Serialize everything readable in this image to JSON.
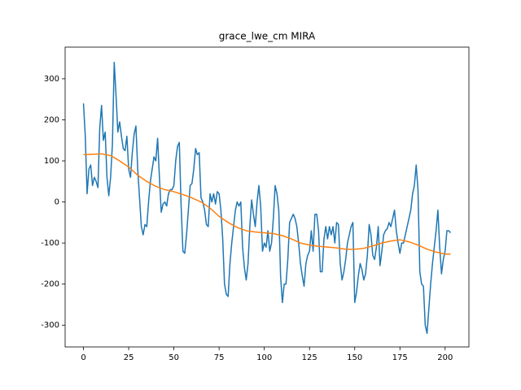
{
  "chart_data": {
    "type": "line",
    "title": "grace_lwe_cm MIRA",
    "xlim": [
      -10.15,
      213.15
    ],
    "xticks": [
      0,
      25,
      50,
      75,
      100,
      125,
      150,
      175,
      200
    ],
    "ylim": [
      -353,
      377
    ],
    "yticks": [
      -300,
      -200,
      -100,
      0,
      100,
      200,
      300
    ],
    "series": [
      {
        "color": "#1f77b4",
        "x": [
          0,
          1,
          2,
          3,
          4,
          5,
          6,
          7,
          8,
          9,
          10,
          11,
          12,
          13,
          14,
          15,
          16,
          17,
          18,
          19,
          20,
          21,
          22,
          23,
          24,
          25,
          26,
          27,
          28,
          29,
          30,
          31,
          32,
          33,
          34,
          35,
          36,
          37,
          38,
          39,
          40,
          41,
          42,
          43,
          44,
          45,
          46,
          47,
          48,
          49,
          50,
          51,
          52,
          53,
          54,
          55,
          56,
          57,
          58,
          59,
          60,
          61,
          62,
          63,
          64,
          65,
          66,
          67,
          68,
          69,
          70,
          71,
          72,
          73,
          74,
          75,
          76,
          77,
          78,
          79,
          80,
          81,
          82,
          83,
          84,
          85,
          86,
          87,
          88,
          89,
          90,
          91,
          92,
          93,
          94,
          95,
          96,
          97,
          98,
          99,
          100,
          101,
          102,
          103,
          104,
          105,
          106,
          107,
          108,
          109,
          110,
          111,
          112,
          113,
          114,
          115,
          116,
          117,
          118,
          119,
          120,
          121,
          122,
          123,
          124,
          125,
          126,
          127,
          128,
          129,
          130,
          131,
          132,
          133,
          134,
          135,
          136,
          137,
          138,
          139,
          140,
          141,
          142,
          143,
          144,
          145,
          146,
          147,
          148,
          149,
          150,
          151,
          152,
          153,
          154,
          155,
          156,
          157,
          158,
          159,
          160,
          161,
          162,
          163,
          164,
          165,
          166,
          167,
          168,
          169,
          170,
          171,
          172,
          173,
          174,
          175,
          176,
          177,
          178,
          179,
          180,
          181,
          182,
          183,
          184,
          185,
          186,
          187,
          188,
          189,
          190,
          191,
          192,
          193,
          194,
          195,
          196,
          197,
          198,
          199,
          200,
          201,
          202,
          203
        ],
        "values": [
          240,
          160,
          20,
          80,
          90,
          40,
          60,
          50,
          35,
          180,
          235,
          150,
          170,
          60,
          15,
          60,
          140,
          340,
          260,
          170,
          195,
          160,
          130,
          125,
          160,
          80,
          60,
          120,
          165,
          185,
          80,
          10,
          -60,
          -80,
          -55,
          -60,
          0,
          50,
          80,
          110,
          100,
          155,
          60,
          -25,
          -5,
          0,
          -10,
          20,
          30,
          30,
          40,
          100,
          135,
          145,
          -10,
          -120,
          -125,
          -80,
          -20,
          40,
          45,
          80,
          130,
          115,
          120,
          10,
          0,
          -20,
          -55,
          -60,
          20,
          0,
          20,
          -5,
          25,
          20,
          -20,
          -90,
          -200,
          -225,
          -230,
          -150,
          -100,
          -60,
          -20,
          0,
          -10,
          0,
          -110,
          -160,
          -190,
          -150,
          -60,
          5,
          -30,
          -60,
          0,
          40,
          -10,
          -120,
          -100,
          -110,
          -70,
          -120,
          -100,
          -40,
          40,
          20,
          -20,
          -180,
          -245,
          -200,
          -200,
          -140,
          -50,
          -40,
          -30,
          -40,
          -60,
          -100,
          -150,
          -180,
          -205,
          -150,
          -130,
          -120,
          -70,
          -120,
          -30,
          -30,
          -70,
          -170,
          -170,
          -90,
          -60,
          -90,
          -60,
          -80,
          -60,
          -100,
          -50,
          -55,
          -150,
          -190,
          -170,
          -140,
          -100,
          -80,
          -60,
          -50,
          -245,
          -220,
          -180,
          -150,
          -165,
          -190,
          -175,
          -130,
          -55,
          -80,
          -130,
          -140,
          -110,
          -60,
          -155,
          -120,
          -80,
          -70,
          -65,
          -50,
          -60,
          -40,
          -20,
          -70,
          -100,
          -125,
          -100,
          -100,
          -80,
          -60,
          -40,
          -20,
          20,
          40,
          90,
          30,
          -170,
          -200,
          -205,
          -300,
          -320,
          -260,
          -200,
          -150,
          -110,
          -70,
          -20,
          -110,
          -175,
          -140,
          -120,
          -70,
          -70,
          -75
        ]
      },
      {
        "color": "#ff7f0e",
        "x": [
          0,
          5,
          10,
          15,
          20,
          25,
          30,
          35,
          40,
          45,
          50,
          55,
          60,
          65,
          70,
          75,
          80,
          85,
          90,
          95,
          100,
          105,
          110,
          115,
          120,
          125,
          130,
          135,
          140,
          145,
          150,
          155,
          160,
          165,
          170,
          175,
          180,
          185,
          190,
          195,
          200,
          203
        ],
        "values": [
          115,
          116,
          117,
          113,
          100,
          85,
          65,
          50,
          38,
          30,
          25,
          18,
          10,
          0,
          -15,
          -35,
          -50,
          -62,
          -70,
          -73,
          -75,
          -77,
          -82,
          -90,
          -100,
          -105,
          -108,
          -110,
          -112,
          -115,
          -115,
          -113,
          -107,
          -100,
          -95,
          -92,
          -97,
          -105,
          -115,
          -122,
          -127,
          -127
        ]
      }
    ]
  }
}
